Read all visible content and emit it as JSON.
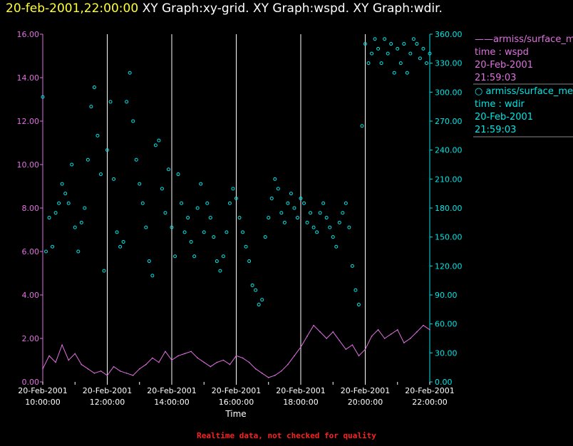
{
  "header": {
    "timestamp": "20-feb-2001,22:00:00",
    "titles": [
      "XY Graph:xy-grid.",
      "XY Graph:wspd.",
      "XY Graph:wdir."
    ]
  },
  "footer": "Realtime data, not checked for quality",
  "colors": {
    "wspd": "#e070e0",
    "wdir": "#00e5e5",
    "grid": "#ffffff",
    "timestamp": "#ffff33"
  },
  "legend": [
    {
      "marker": "——",
      "source": "armiss/surface_met",
      "var": "time : wspd",
      "date": "20-Feb-2001",
      "time": "21:59:03"
    },
    {
      "marker": "○",
      "source": "armiss/surface_met",
      "var": "time : wdir",
      "date": "20-Feb-2001",
      "time": "21:59:03"
    }
  ],
  "chart_data": {
    "type": "line",
    "xlabel": "Time",
    "x_ticks": [
      {
        "hour": 10,
        "date": "20-Feb-2001",
        "time": "10:00:00"
      },
      {
        "hour": 11,
        "date": "",
        "time": ""
      },
      {
        "hour": 12,
        "date": "20-Feb-2001",
        "time": "12:00:00"
      },
      {
        "hour": 13,
        "date": "",
        "time": ""
      },
      {
        "hour": 14,
        "date": "20-Feb-2001",
        "time": "14:00:00"
      },
      {
        "hour": 15,
        "date": "",
        "time": ""
      },
      {
        "hour": 16,
        "date": "20-Feb-2001",
        "time": "16:00:00"
      },
      {
        "hour": 17,
        "date": "",
        "time": ""
      },
      {
        "hour": 18,
        "date": "20-Feb-2001",
        "time": "18:00:00"
      },
      {
        "hour": 19,
        "date": "",
        "time": ""
      },
      {
        "hour": 20,
        "date": "20-Feb-2001",
        "time": "20:00:00"
      },
      {
        "hour": 21,
        "date": "",
        "time": ""
      },
      {
        "hour": 22,
        "date": "20-Feb-2001",
        "time": "22:00:00"
      }
    ],
    "xlim_hours": [
      10,
      22
    ],
    "left_axis": {
      "ylim": [
        0,
        16
      ],
      "ticks": [
        "0.00",
        "2.00",
        "4.00",
        "6.00",
        "8.00",
        "10.00",
        "12.00",
        "14.00",
        "16.00"
      ]
    },
    "right_axis": {
      "ylim": [
        0,
        360
      ],
      "ticks": [
        "0.00",
        "30.00",
        "60.00",
        "90.00",
        "120.00",
        "150.00",
        "180.00",
        "210.00",
        "240.00",
        "270.00",
        "300.00",
        "330.00",
        "360.00"
      ]
    },
    "series": [
      {
        "name": "armiss/surface_met time : wspd",
        "axis": "left",
        "mode": "line",
        "points": [
          [
            10.0,
            0.6
          ],
          [
            10.2,
            1.2
          ],
          [
            10.4,
            0.9
          ],
          [
            10.6,
            1.7
          ],
          [
            10.8,
            1.0
          ],
          [
            11.0,
            1.3
          ],
          [
            11.2,
            0.8
          ],
          [
            11.4,
            0.6
          ],
          [
            11.6,
            0.4
          ],
          [
            11.8,
            0.5
          ],
          [
            12.0,
            0.3
          ],
          [
            12.2,
            0.7
          ],
          [
            12.4,
            0.5
          ],
          [
            12.6,
            0.4
          ],
          [
            12.8,
            0.3
          ],
          [
            13.0,
            0.6
          ],
          [
            13.2,
            0.8
          ],
          [
            13.4,
            1.1
          ],
          [
            13.6,
            0.9
          ],
          [
            13.8,
            1.4
          ],
          [
            14.0,
            1.0
          ],
          [
            14.2,
            1.2
          ],
          [
            14.4,
            1.3
          ],
          [
            14.6,
            1.4
          ],
          [
            14.8,
            1.1
          ],
          [
            15.0,
            0.9
          ],
          [
            15.2,
            0.7
          ],
          [
            15.4,
            0.9
          ],
          [
            15.6,
            1.0
          ],
          [
            15.8,
            0.8
          ],
          [
            16.0,
            1.2
          ],
          [
            16.2,
            1.1
          ],
          [
            16.4,
            0.9
          ],
          [
            16.6,
            0.6
          ],
          [
            16.8,
            0.4
          ],
          [
            17.0,
            0.2
          ],
          [
            17.2,
            0.3
          ],
          [
            17.4,
            0.5
          ],
          [
            17.6,
            0.8
          ],
          [
            17.8,
            1.2
          ],
          [
            18.0,
            1.6
          ],
          [
            18.2,
            2.1
          ],
          [
            18.4,
            2.6
          ],
          [
            18.6,
            2.3
          ],
          [
            18.8,
            2.0
          ],
          [
            19.0,
            2.3
          ],
          [
            19.2,
            1.9
          ],
          [
            19.4,
            1.5
          ],
          [
            19.6,
            1.7
          ],
          [
            19.8,
            1.2
          ],
          [
            20.0,
            1.5
          ],
          [
            20.2,
            2.1
          ],
          [
            20.4,
            2.4
          ],
          [
            20.6,
            2.0
          ],
          [
            20.8,
            2.2
          ],
          [
            21.0,
            2.4
          ],
          [
            21.2,
            1.8
          ],
          [
            21.4,
            2.0
          ],
          [
            21.6,
            2.3
          ],
          [
            21.8,
            2.6
          ],
          [
            22.0,
            2.4
          ]
        ]
      },
      {
        "name": "armiss/surface_met time : wdir",
        "axis": "right",
        "mode": "scatter",
        "points": [
          [
            10.0,
            295
          ],
          [
            10.1,
            135
          ],
          [
            10.2,
            170
          ],
          [
            10.3,
            140
          ],
          [
            10.4,
            175
          ],
          [
            10.5,
            185
          ],
          [
            10.6,
            205
          ],
          [
            10.7,
            195
          ],
          [
            10.8,
            185
          ],
          [
            10.9,
            225
          ],
          [
            11.0,
            160
          ],
          [
            11.1,
            135
          ],
          [
            11.2,
            165
          ],
          [
            11.3,
            180
          ],
          [
            11.4,
            230
          ],
          [
            11.5,
            285
          ],
          [
            11.6,
            305
          ],
          [
            11.7,
            255
          ],
          [
            11.8,
            215
          ],
          [
            11.9,
            115
          ],
          [
            12.0,
            240
          ],
          [
            12.1,
            290
          ],
          [
            12.2,
            210
          ],
          [
            12.3,
            155
          ],
          [
            12.4,
            140
          ],
          [
            12.5,
            145
          ],
          [
            12.6,
            290
          ],
          [
            12.7,
            320
          ],
          [
            12.8,
            270
          ],
          [
            12.9,
            230
          ],
          [
            13.0,
            205
          ],
          [
            13.1,
            185
          ],
          [
            13.2,
            160
          ],
          [
            13.3,
            125
          ],
          [
            13.4,
            110
          ],
          [
            13.5,
            245
          ],
          [
            13.6,
            250
          ],
          [
            13.7,
            200
          ],
          [
            13.8,
            175
          ],
          [
            13.9,
            220
          ],
          [
            14.0,
            160
          ],
          [
            14.1,
            130
          ],
          [
            14.2,
            215
          ],
          [
            14.3,
            185
          ],
          [
            14.4,
            155
          ],
          [
            14.5,
            170
          ],
          [
            14.6,
            145
          ],
          [
            14.7,
            130
          ],
          [
            14.8,
            180
          ],
          [
            14.9,
            205
          ],
          [
            15.0,
            155
          ],
          [
            15.1,
            185
          ],
          [
            15.2,
            170
          ],
          [
            15.3,
            150
          ],
          [
            15.4,
            125
          ],
          [
            15.5,
            115
          ],
          [
            15.6,
            130
          ],
          [
            15.7,
            155
          ],
          [
            15.8,
            185
          ],
          [
            15.9,
            200
          ],
          [
            16.0,
            190
          ],
          [
            16.1,
            170
          ],
          [
            16.2,
            155
          ],
          [
            16.3,
            140
          ],
          [
            16.4,
            125
          ],
          [
            16.5,
            100
          ],
          [
            16.6,
            95
          ],
          [
            16.7,
            80
          ],
          [
            16.8,
            85
          ],
          [
            16.9,
            150
          ],
          [
            17.0,
            170
          ],
          [
            17.1,
            190
          ],
          [
            17.2,
            210
          ],
          [
            17.3,
            200
          ],
          [
            17.4,
            175
          ],
          [
            17.5,
            165
          ],
          [
            17.6,
            185
          ],
          [
            17.7,
            195
          ],
          [
            17.8,
            180
          ],
          [
            17.9,
            170
          ],
          [
            18.0,
            190
          ],
          [
            18.1,
            185
          ],
          [
            18.2,
            165
          ],
          [
            18.3,
            175
          ],
          [
            18.4,
            160
          ],
          [
            18.5,
            155
          ],
          [
            18.6,
            175
          ],
          [
            18.7,
            185
          ],
          [
            18.8,
            170
          ],
          [
            18.9,
            160
          ],
          [
            19.0,
            150
          ],
          [
            19.1,
            140
          ],
          [
            19.2,
            165
          ],
          [
            19.3,
            175
          ],
          [
            19.4,
            185
          ],
          [
            19.5,
            160
          ],
          [
            19.6,
            120
          ],
          [
            19.7,
            95
          ],
          [
            19.8,
            80
          ],
          [
            19.9,
            265
          ],
          [
            20.0,
            350
          ],
          [
            20.1,
            330
          ],
          [
            20.2,
            340
          ],
          [
            20.3,
            355
          ],
          [
            20.4,
            345
          ],
          [
            20.5,
            330
          ],
          [
            20.6,
            355
          ],
          [
            20.7,
            340
          ],
          [
            20.8,
            350
          ],
          [
            20.9,
            320
          ],
          [
            21.0,
            345
          ],
          [
            21.1,
            330
          ],
          [
            21.2,
            350
          ],
          [
            21.3,
            320
          ],
          [
            21.4,
            340
          ],
          [
            21.5,
            355
          ],
          [
            21.6,
            350
          ],
          [
            21.7,
            335
          ],
          [
            21.8,
            345
          ],
          [
            21.9,
            330
          ],
          [
            22.0,
            340
          ]
        ]
      }
    ]
  }
}
